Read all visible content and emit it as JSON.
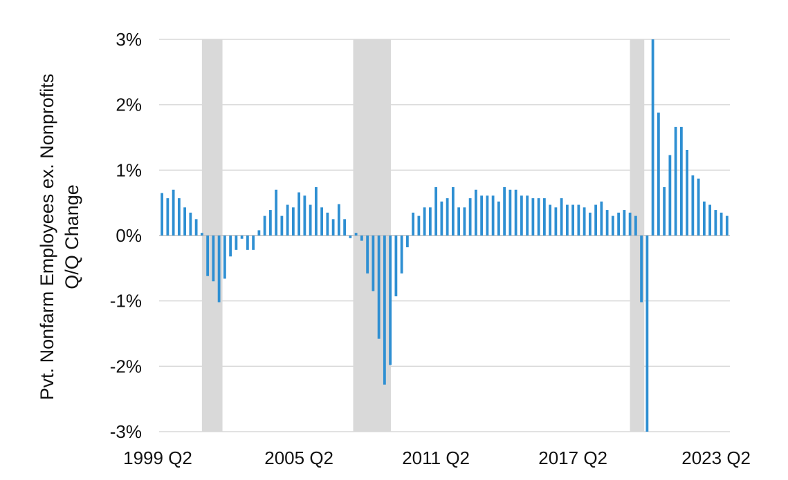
{
  "chart_data": {
    "type": "bar",
    "title": "",
    "xlabel": "",
    "ylabel_lines": [
      "Pvt. Nonfarm Employees ex. Nonprofits",
      "Q/Q Change"
    ],
    "ylim": [
      -3,
      3
    ],
    "y_ticks": [
      3,
      2,
      1,
      0,
      -1,
      -2,
      -3
    ],
    "y_tick_labels": [
      "3%",
      "2%",
      "1%",
      "0%",
      "-1%",
      "-2%",
      "-3%"
    ],
    "x_tick_labels": [
      {
        "index": 0,
        "label": "1999 Q2"
      },
      {
        "index": 24,
        "label": "2005 Q2"
      },
      {
        "index": 48,
        "label": "2011 Q2"
      },
      {
        "index": 72,
        "label": "2017 Q2"
      },
      {
        "index": 96,
        "label": "2023 Q2"
      }
    ],
    "start_period": "1999 Q2",
    "units": "percent",
    "grid": true,
    "recessions": [
      {
        "start_index": 7.5,
        "end_index": 11.1
      },
      {
        "start_index": 34.0,
        "end_index": 40.6
      },
      {
        "start_index": 82.5,
        "end_index": 85.0
      }
    ],
    "values": [
      0.65,
      0.57,
      0.7,
      0.57,
      0.43,
      0.35,
      0.25,
      0.04,
      -0.62,
      -0.7,
      -1.02,
      -0.66,
      -0.32,
      -0.22,
      -0.05,
      -0.22,
      -0.22,
      0.08,
      0.3,
      0.39,
      0.7,
      0.3,
      0.47,
      0.43,
      0.66,
      0.61,
      0.47,
      0.74,
      0.43,
      0.35,
      0.25,
      0.48,
      0.25,
      -0.04,
      0.04,
      -0.08,
      -0.58,
      -0.85,
      -1.58,
      -2.28,
      -1.98,
      -0.93,
      -0.58,
      -0.18,
      0.35,
      0.3,
      0.43,
      0.43,
      0.74,
      0.52,
      0.57,
      0.74,
      0.43,
      0.43,
      0.57,
      0.7,
      0.61,
      0.61,
      0.61,
      0.52,
      0.74,
      0.7,
      0.7,
      0.61,
      0.61,
      0.57,
      0.57,
      0.57,
      0.47,
      0.43,
      0.57,
      0.47,
      0.47,
      0.47,
      0.43,
      0.35,
      0.47,
      0.52,
      0.39,
      0.3,
      0.35,
      0.39,
      0.35,
      0.3,
      -1.02,
      -3.0,
      3.0,
      1.88,
      0.74,
      1.23,
      1.66,
      1.66,
      1.31,
      0.92,
      0.87,
      0.52,
      0.47,
      0.39,
      0.35,
      0.3
    ],
    "colors": {
      "bar": "#2e8fd2",
      "recession": "#d9d9d9",
      "grid": "#d9d9d9",
      "zero_line": "#bfbfbf"
    }
  }
}
